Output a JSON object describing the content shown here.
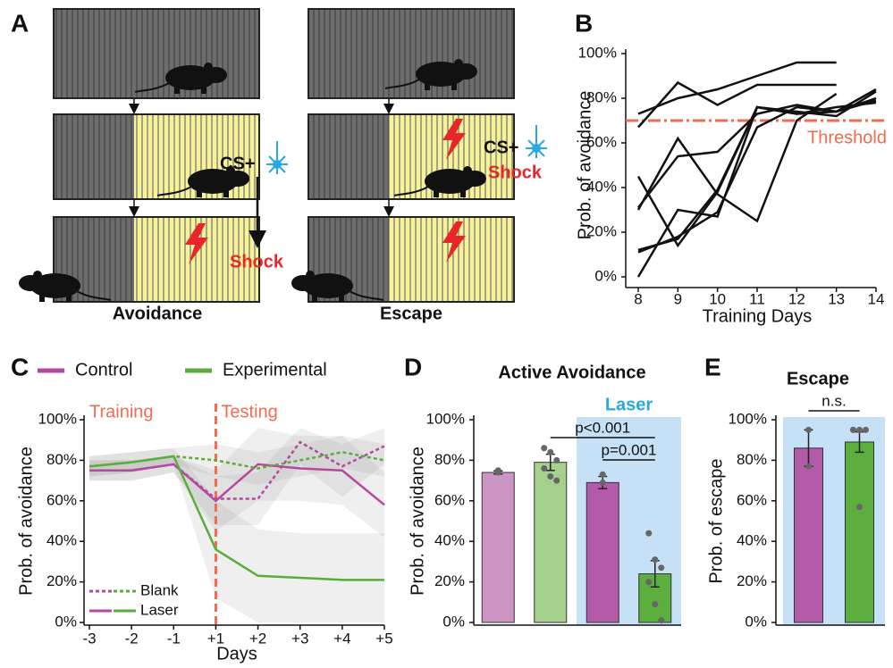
{
  "panel_labels": [
    "A",
    "B",
    "C",
    "D",
    "E"
  ],
  "diagram": {
    "cs_left": "CS+",
    "shock_left": "Shock",
    "caption_left": "Avoidance",
    "cs_right": "CS+",
    "shock_right": "Shock",
    "caption_right": "Escape"
  },
  "chart_data": [
    {
      "type": "line",
      "xlabel": "Training Days",
      "ylabel": "Prob. of avoidance",
      "x": [
        8,
        9,
        10,
        11,
        12,
        13,
        14
      ],
      "xlim": [
        8,
        14
      ],
      "xticks": [
        8,
        9,
        10,
        11,
        12,
        13,
        14
      ],
      "ylim": [
        0,
        100
      ],
      "yticks": [
        {
          "value": 0,
          "label": "0%"
        },
        {
          "value": 20,
          "label": "20%"
        },
        {
          "value": 40,
          "label": "40%"
        },
        {
          "value": 60,
          "label": "60%"
        },
        {
          "value": 80,
          "label": "80%"
        },
        {
          "value": 100,
          "label": "100%"
        }
      ],
      "series": [
        {
          "color": "#111111",
          "values": [
            73,
            80,
            84,
            90,
            96,
            96,
            null
          ]
        },
        {
          "color": "#111111",
          "values": [
            67,
            87,
            77,
            86,
            86,
            86,
            null
          ]
        },
        {
          "color": "#111111",
          "values": [
            45,
            14,
            38,
            76,
            74,
            72,
            83
          ]
        },
        {
          "color": "#111111",
          "values": [
            0,
            30,
            27,
            76,
            73,
            74,
            84
          ]
        },
        {
          "color": "#111111",
          "values": [
            11,
            18,
            29,
            67,
            76,
            74,
            79
          ]
        },
        {
          "color": "#111111",
          "values": [
            30,
            62,
            37,
            25,
            70,
            82,
            null
          ]
        },
        {
          "color": "#111111",
          "values": [
            31,
            54,
            56,
            73,
            77,
            74,
            80
          ]
        },
        {
          "color": "#111111",
          "values": [
            12,
            17,
            39,
            76,
            73,
            76,
            78
          ]
        }
      ],
      "threshold": {
        "value": 70,
        "label": "Threshold",
        "color": "#f26b4f"
      }
    },
    {
      "type": "line",
      "xlabel": "Days",
      "ylabel": "Prob. of avoidance",
      "categories": [
        "-3",
        "-2",
        "-1",
        "+1",
        "+2",
        "+3",
        "+4",
        "+5"
      ],
      "ylim": [
        0,
        100
      ],
      "yticks": [
        {
          "value": 0,
          "label": "0%"
        },
        {
          "value": 20,
          "label": "20%"
        },
        {
          "value": 40,
          "label": "40%"
        },
        {
          "value": 60,
          "label": "60%"
        },
        {
          "value": 80,
          "label": "80%"
        },
        {
          "value": 100,
          "label": "100%"
        }
      ],
      "groups": [
        {
          "name": "Control",
          "color": "#b5489f"
        },
        {
          "name": "Experimental",
          "color": "#5aad3c"
        }
      ],
      "line_styles": [
        {
          "name": "Blank",
          "dash": "4 3"
        },
        {
          "name": "Laser",
          "dash": "none"
        }
      ],
      "series": [
        {
          "group": 0,
          "style": 0,
          "values": [
            75,
            75,
            78,
            61,
            61,
            89,
            77,
            87
          ],
          "lower": [
            70,
            70,
            74,
            48,
            48,
            78,
            62,
            78
          ],
          "upper": [
            80,
            80,
            82,
            72,
            74,
            96,
            88,
            96
          ]
        },
        {
          "group": 0,
          "style": 1,
          "values": [
            75,
            75,
            78,
            60,
            78,
            76,
            75,
            58
          ],
          "lower": [
            70,
            70,
            74,
            45,
            60,
            60,
            58,
            42
          ],
          "upper": [
            80,
            80,
            82,
            75,
            96,
            92,
            92,
            74
          ]
        },
        {
          "group": 1,
          "style": 0,
          "values": [
            77,
            79,
            82,
            80,
            76,
            80,
            84,
            80
          ],
          "lower": [
            72,
            74,
            78,
            72,
            68,
            72,
            76,
            72
          ],
          "upper": [
            82,
            84,
            86,
            88,
            84,
            88,
            92,
            88
          ]
        },
        {
          "group": 1,
          "style": 1,
          "values": [
            77,
            79,
            82,
            36,
            23,
            22,
            21,
            21
          ],
          "lower": [
            72,
            74,
            78,
            12,
            0,
            0,
            0,
            0
          ],
          "upper": [
            82,
            84,
            86,
            60,
            46,
            44,
            44,
            44
          ]
        }
      ],
      "band_color": "#9a9a9a",
      "divider": {
        "at": 3,
        "color": "#f26b4f"
      },
      "phase_labels": [
        "Training",
        "Testing"
      ]
    },
    {
      "type": "bar",
      "title": "Active Avoidance",
      "ylabel": "Prob. of avoidance",
      "categories": [
        null,
        null,
        null,
        null
      ],
      "values": [
        74,
        79,
        69,
        24
      ],
      "errors": [
        0.8,
        4,
        3,
        6.5
      ],
      "colors": [
        "#cc95c4",
        "#a5d18d",
        "#b35aa8",
        "#5cae3e"
      ],
      "points": [
        [
          74,
          75
        ],
        [
          86,
          84,
          80,
          76,
          72,
          70
        ],
        [
          73,
          69
        ],
        [
          44,
          31,
          27,
          20,
          9,
          1
        ]
      ],
      "ylim": [
        0,
        100
      ],
      "yticks": [
        {
          "value": 0,
          "label": "0%"
        },
        {
          "value": 20,
          "label": "20%"
        },
        {
          "value": 40,
          "label": "40%"
        },
        {
          "value": 60,
          "label": "60%"
        },
        {
          "value": 80,
          "label": "80%"
        },
        {
          "value": 100,
          "label": "100%"
        }
      ],
      "highlight": {
        "label": "Laser",
        "from": 2,
        "to": 3,
        "color": "#c6e0f5",
        "label_color": "#29a9e0"
      },
      "significance": [
        {
          "from": 1,
          "to": 3,
          "label": "p<0.001"
        },
        {
          "from": 2,
          "to": 3,
          "label": "p=0.001"
        }
      ]
    },
    {
      "type": "bar",
      "title": "Escape",
      "ylabel": "Prob. of escape",
      "categories": [
        null,
        null
      ],
      "values": [
        86,
        89
      ],
      "errors": [
        9,
        5
      ],
      "colors": [
        "#b35aa8",
        "#5cae3e"
      ],
      "points": [
        [
          95,
          77
        ],
        [
          95,
          95,
          95,
          95,
          57
        ]
      ],
      "ylim": [
        0,
        100
      ],
      "yticks": [
        {
          "value": 0,
          "label": "0%"
        },
        {
          "value": 20,
          "label": "20%"
        },
        {
          "value": 40,
          "label": "40%"
        },
        {
          "value": 60,
          "label": "60%"
        },
        {
          "value": 80,
          "label": "80%"
        },
        {
          "value": 100,
          "label": "100%"
        }
      ],
      "highlight": {
        "from": 0,
        "to": 1,
        "color": "#c6e0f5"
      },
      "significance": [
        {
          "from": 0,
          "to": 1,
          "label": "n.s."
        }
      ]
    }
  ]
}
